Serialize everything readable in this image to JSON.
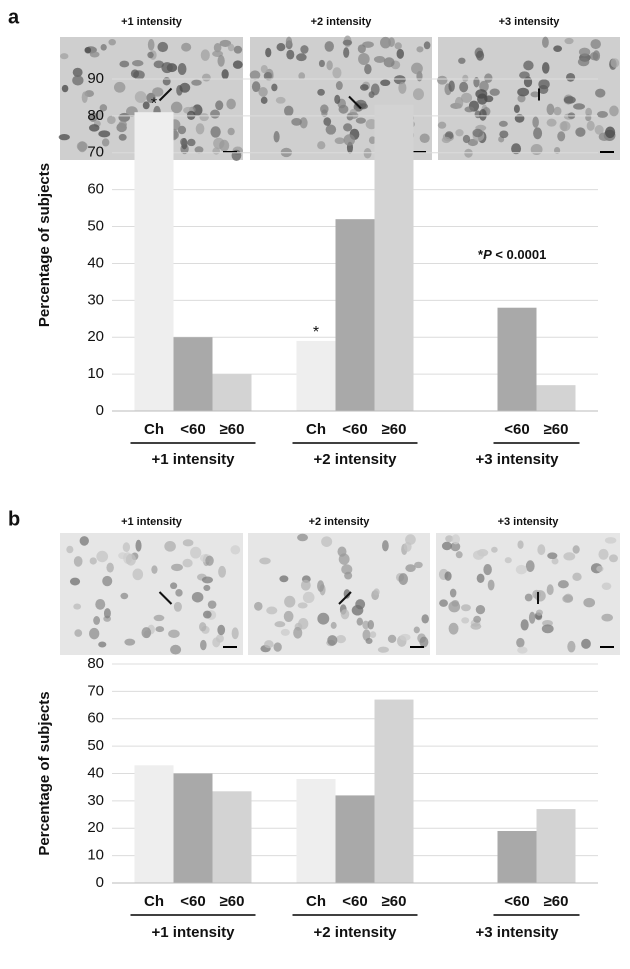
{
  "chart_data": [
    {
      "type": "bar",
      "panel": "a",
      "images": [
        "+1 intensity",
        "+2 intensity",
        "+3 intensity"
      ],
      "y_label": "Percentage of subjects",
      "categories": [
        "+1 intensity",
        "+2 intensity",
        "+3 intensity"
      ],
      "series": [
        {
          "name": "Ch",
          "color": "#eeeeee",
          "values": [
            81,
            19,
            null
          ],
          "significance": [
            "*",
            "*",
            null
          ]
        },
        {
          "name": "<60",
          "color": "#a9a9a9",
          "values": [
            20,
            52,
            28
          ]
        },
        {
          "name": "≥60",
          "color": "#d3d3d3",
          "values": [
            10,
            83,
            7
          ]
        }
      ],
      "note": [
        "*",
        "P",
        " < 0.0001"
      ],
      "ylim": [
        0,
        90
      ],
      "yticks": [
        0,
        10,
        20,
        30,
        40,
        50,
        60,
        70,
        80,
        90
      ],
      "grid": true
    },
    {
      "type": "bar",
      "panel": "b",
      "images": [
        "+1 intensity",
        "+2 intensity",
        "+3 intensity"
      ],
      "y_label": "Percentage of subjects",
      "categories": [
        "+1 intensity",
        "+2 intensity",
        "+3 intensity"
      ],
      "series": [
        {
          "name": "Ch",
          "color": "#eeeeee",
          "values": [
            43,
            38,
            null
          ]
        },
        {
          "name": "<60",
          "color": "#a9a9a9",
          "values": [
            40,
            32,
            19
          ]
        },
        {
          "name": "≥60",
          "color": "#d3d3d3",
          "values": [
            33.5,
            67,
            27
          ]
        }
      ],
      "ylim": [
        0,
        80
      ],
      "yticks": [
        0,
        10,
        20,
        30,
        40,
        50,
        60,
        70,
        80
      ],
      "grid": true
    }
  ]
}
